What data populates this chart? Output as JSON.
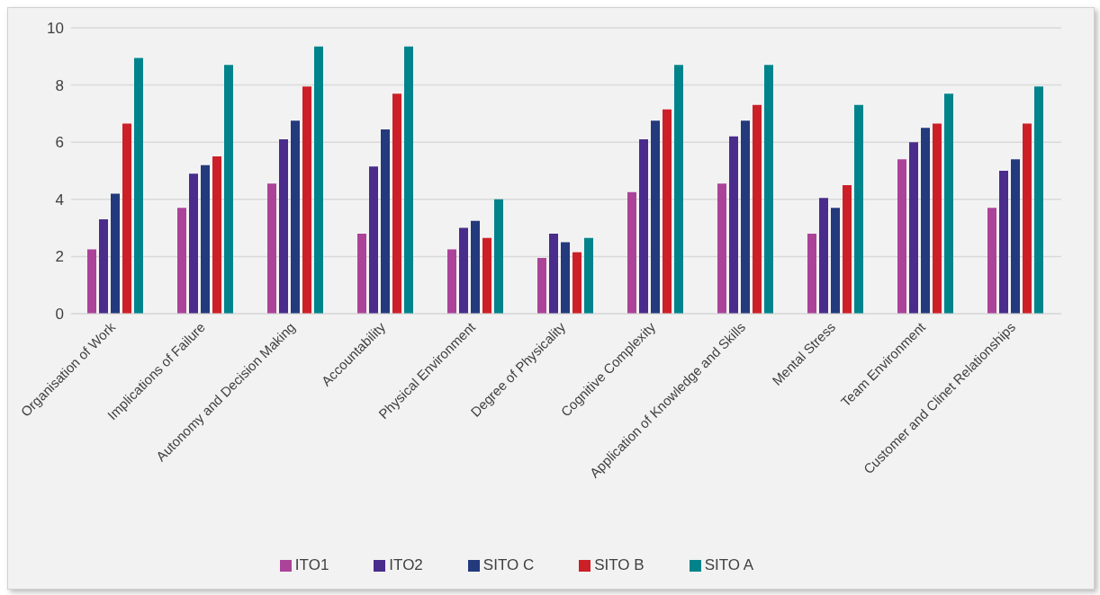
{
  "chart_data": {
    "type": "bar",
    "categories": [
      "Organisation of Work",
      "Implications of Failure",
      "Autonomy and Decision Making",
      "Accountability",
      "Physical Environment",
      "Degree of Physicality",
      "Cognitive Complexity",
      "Application of Knowledge and Skills",
      "Mental Stress",
      "Team Environment",
      "Customer and Clinet Relationships"
    ],
    "series": [
      {
        "name": "ITO1",
        "color": "#ab4399",
        "values": [
          2.25,
          3.7,
          4.55,
          2.8,
          2.25,
          1.95,
          4.25,
          4.55,
          2.8,
          5.4,
          3.7
        ]
      },
      {
        "name": "ITO2",
        "color": "#4a2c8c",
        "values": [
          3.3,
          4.9,
          6.1,
          5.15,
          3.0,
          2.8,
          6.1,
          6.2,
          4.05,
          6.0,
          5.0
        ]
      },
      {
        "name": "SITO C",
        "color": "#233a7c",
        "values": [
          4.2,
          5.2,
          6.75,
          6.45,
          3.25,
          2.5,
          6.75,
          6.75,
          3.7,
          6.5,
          5.4
        ]
      },
      {
        "name": "SITO B",
        "color": "#cd1f27",
        "values": [
          6.65,
          5.5,
          7.95,
          7.7,
          2.65,
          2.15,
          7.15,
          7.3,
          4.5,
          6.65,
          6.65
        ]
      },
      {
        "name": "SITO A",
        "color": "#00838b",
        "values": [
          8.95,
          8.7,
          9.35,
          9.35,
          4.0,
          2.65,
          8.7,
          8.7,
          7.3,
          7.7,
          7.95
        ]
      }
    ],
    "ylim": [
      0,
      10
    ],
    "yticks": [
      0,
      2,
      4,
      6,
      8,
      10
    ],
    "grid": "y",
    "legend": "bottom"
  }
}
